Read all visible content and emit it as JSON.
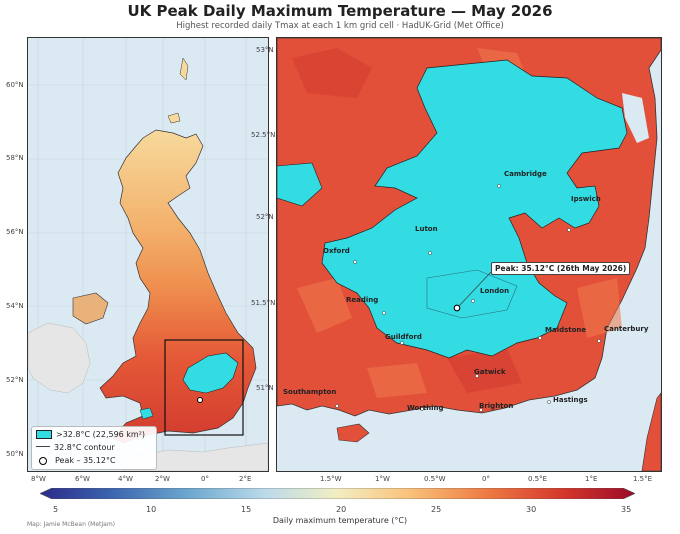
{
  "header": {
    "title": "UK Peak Daily Maximum Temperature — May 2026",
    "subtitle": "Highest recorded daily Tmax at each 1 km grid cell  ·  HadUK-Grid (Met Office)"
  },
  "left_map": {
    "lat_ticks": [
      "50°N",
      "52°N",
      "54°N",
      "56°N",
      "58°N",
      "60°N"
    ],
    "lon_ticks": [
      "8°W",
      "6°W",
      "4°W",
      "2°W",
      "0°",
      "2°E"
    ],
    "legend": {
      "area": ">32.8°C (22,596 km²)",
      "contour": "32.8°C contour",
      "peak": "Peak – 35.12°C"
    }
  },
  "right_map": {
    "lat_ticks": [
      "51°N",
      "51.5°N",
      "52°N",
      "52.5°N",
      "53°N"
    ],
    "lon_ticks": [
      "1.5°W",
      "1°W",
      "0.5°W",
      "0°",
      "0.5°E",
      "1°E",
      "1.5°E"
    ],
    "peak_annotation": "Peak: 35.12°C (26th May 2026)",
    "towns": [
      "Cambridge",
      "Ipswich",
      "Luton",
      "Oxford",
      "London",
      "Reading",
      "Guildford",
      "Maidstone",
      "Canterbury",
      "Gatwick",
      "Southampton",
      "Worthing",
      "Brighton",
      "Hastings"
    ]
  },
  "colorbar": {
    "ticks": [
      "5",
      "10",
      "15",
      "20",
      "25",
      "30",
      "35"
    ],
    "label": "Daily maximum temperature (°C)",
    "colors": [
      "#2c2b8a",
      "#3b64ae",
      "#6da8cf",
      "#bcdbea",
      "#f3eec2",
      "#f9c27a",
      "#ee7b44",
      "#d3372b",
      "#9b0b2a"
    ]
  },
  "colors": {
    "hot_area": "#33dbe3",
    "land_warm": "#e2503a",
    "sea": "#dbe9f3"
  },
  "credit": "Map: Jamie McBean (MetJam)"
}
